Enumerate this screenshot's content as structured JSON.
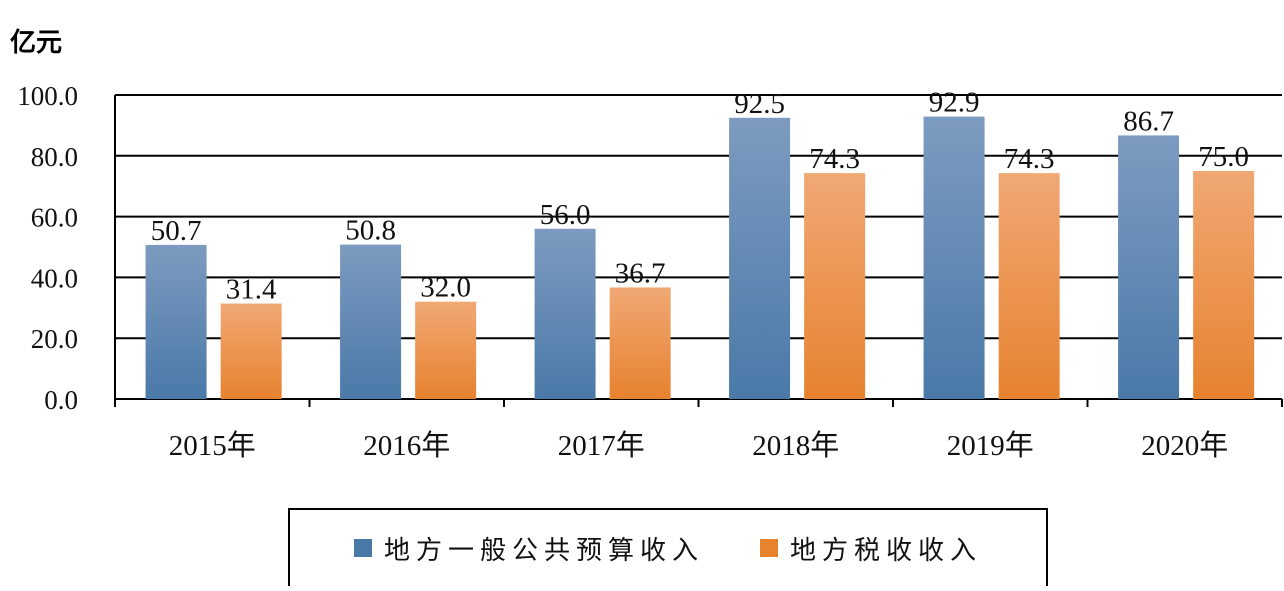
{
  "unit_label": "亿元",
  "colors": {
    "series1_top": "#7d9bc0",
    "series1_bottom": "#4a79a8",
    "series2_top": "#f0a874",
    "series2_bottom": "#e7822f",
    "axis": "#000000",
    "grid": "#000000"
  },
  "chart_data": {
    "type": "bar",
    "categories": [
      "2015年",
      "2016年",
      "2017年",
      "2018年",
      "2019年",
      "2020年"
    ],
    "series": [
      {
        "name": "地方一般公共预算收入",
        "values": [
          50.7,
          50.8,
          56.0,
          92.5,
          92.9,
          86.7
        ],
        "labels": [
          "50.7",
          "50.8",
          "56.0",
          "92.5",
          "92.9",
          "86.7"
        ]
      },
      {
        "name": "地方税收收入",
        "values": [
          31.4,
          32.0,
          36.7,
          74.3,
          74.3,
          75.0
        ],
        "labels": [
          "31.4",
          "32.0",
          "36.7",
          "74.3",
          "74.3",
          "75.0"
        ]
      }
    ],
    "ylim": [
      0,
      100
    ],
    "yticks": [
      "0.0",
      "20.0",
      "40.0",
      "60.0",
      "80.0",
      "100.0"
    ],
    "grid": true,
    "legend_position": "bottom"
  }
}
